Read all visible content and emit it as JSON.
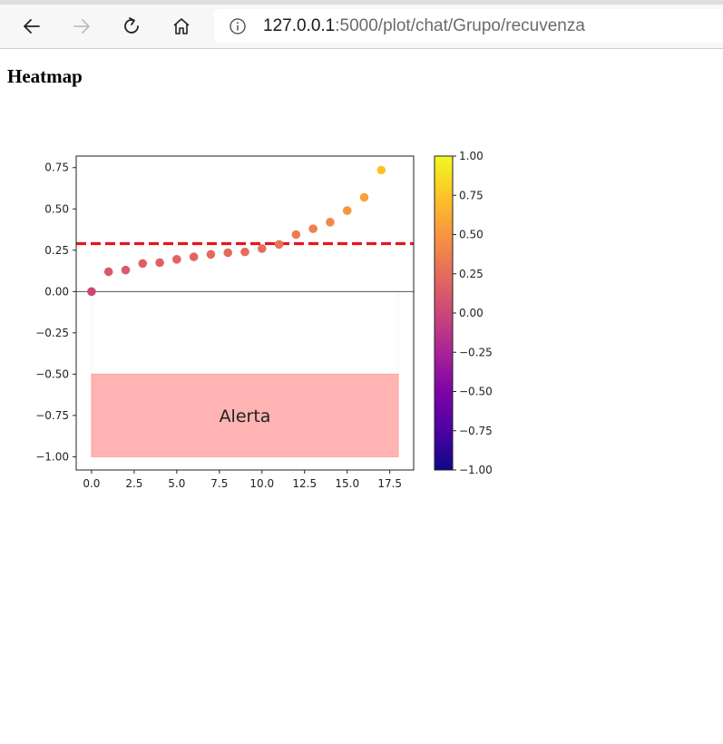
{
  "browser": {
    "url_host": "127.0.0.1",
    "url_path": ":5000/plot/chat/Grupo/recuvenza",
    "icons": [
      "back-arrow-icon",
      "forward-arrow-icon",
      "refresh-icon",
      "home-icon",
      "info-icon"
    ]
  },
  "page": {
    "heading": "Heatmap"
  },
  "chart_data": {
    "type": "scatter",
    "title": "",
    "xlabel": "",
    "ylabel": "",
    "xlim": [
      -0.9,
      18.9
    ],
    "ylim": [
      -1.08,
      0.82
    ],
    "x_ticks": [
      0.0,
      2.5,
      5.0,
      7.5,
      10.0,
      12.5,
      15.0,
      17.5
    ],
    "x_tick_labels": [
      "0.0",
      "2.5",
      "5.0",
      "7.5",
      "10.0",
      "12.5",
      "15.0",
      "17.5"
    ],
    "y_ticks": [
      0.75,
      0.5,
      0.25,
      0.0,
      -0.25,
      -0.5,
      -0.75,
      -1.0
    ],
    "y_tick_labels": [
      "0.75",
      "0.50",
      "0.25",
      "0.00",
      "−0.25",
      "−0.50",
      "−0.75",
      "−1.00"
    ],
    "x": [
      0,
      1,
      2,
      3,
      4,
      5,
      6,
      7,
      8,
      9,
      10,
      11,
      12,
      13,
      14,
      15,
      16,
      17
    ],
    "y": [
      0.0,
      0.12,
      0.13,
      0.17,
      0.175,
      0.195,
      0.21,
      0.225,
      0.235,
      0.24,
      0.26,
      0.285,
      0.345,
      0.38,
      0.42,
      0.49,
      0.57,
      0.735
    ],
    "colormap": "plasma",
    "color_range": [
      -1.0,
      1.0
    ],
    "threshold_line": {
      "y": 0.29,
      "color": "#e8141b",
      "style": "dashed"
    },
    "zero_line": {
      "y": 0.0,
      "color": "#555555"
    },
    "alert_region": {
      "x": [
        0,
        18
      ],
      "y": [
        -1.0,
        -0.5
      ],
      "color": "#ffb3b3",
      "label": "Alerta"
    },
    "white_region": {
      "x": [
        0,
        18
      ],
      "y": [
        -0.5,
        0.0
      ]
    },
    "colorbar": {
      "ticks": [
        1.0,
        0.75,
        0.5,
        0.25,
        0.0,
        -0.25,
        -0.5,
        -0.75,
        -1.0
      ],
      "tick_labels": [
        "1.00",
        "0.75",
        "0.50",
        "0.25",
        "0.00",
        "−0.25",
        "−0.50",
        "−0.75",
        "−1.00"
      ]
    },
    "grid": false
  }
}
